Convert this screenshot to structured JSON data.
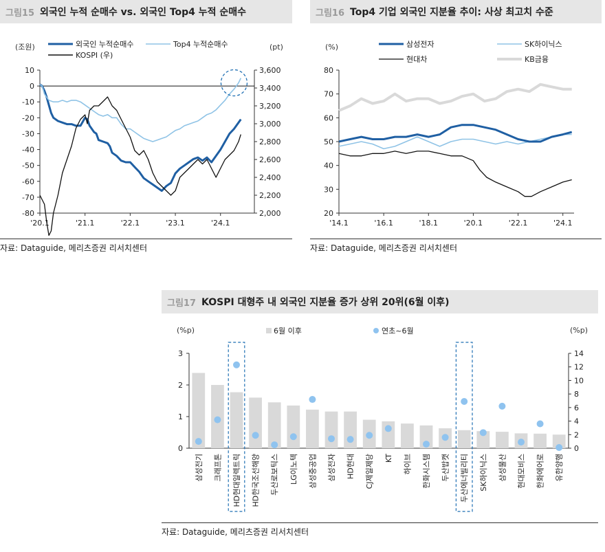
{
  "fig15": {
    "num": "그림15",
    "title": "외국인 누적 순매수 vs. 외국인 Top4 누적 순매수",
    "source": "자료: Dataguide, 메리츠증권 리서치센터",
    "chart_data": {
      "type": "line",
      "left_unit": "(조원)",
      "right_unit": "(pt)",
      "left_ticks": [
        10,
        0,
        -10,
        -20,
        -30,
        -40,
        -50,
        -60,
        -70,
        -80
      ],
      "right_ticks": [
        "3,600",
        "3,400",
        "3,200",
        "3,000",
        "2,800",
        "2,600",
        "2,400",
        "2,200",
        "2,000"
      ],
      "ylim_left": [
        -80,
        10
      ],
      "ylim_right": [
        2000,
        3600
      ],
      "x_ticks": [
        "'20.1",
        "'21.1",
        "'22.1",
        "'23.1",
        "'24.1"
      ],
      "xlim": [
        2020.0,
        2024.75
      ],
      "legend": [
        "외국인 누적순매수",
        "Top4 누적순매수",
        "KOSPI (우)"
      ],
      "colors": [
        "#1f5fa3",
        "#8fc3e6",
        "#111111"
      ],
      "series": [
        {
          "name": "외국인 누적순매수",
          "axis": "left",
          "x": [
            2020.0,
            2020.05,
            2020.1,
            2020.15,
            2020.2,
            2020.25,
            2020.3,
            2020.4,
            2020.5,
            2020.6,
            2020.7,
            2020.8,
            2020.9,
            2021.0,
            2021.05,
            2021.1,
            2021.2,
            2021.25,
            2021.3,
            2021.4,
            2021.5,
            2021.55,
            2021.6,
            2021.7,
            2021.8,
            2021.9,
            2022.0,
            2022.1,
            2022.2,
            2022.3,
            2022.4,
            2022.5,
            2022.6,
            2022.7,
            2022.8,
            2022.9,
            2023.0,
            2023.1,
            2023.2,
            2023.3,
            2023.4,
            2023.5,
            2023.6,
            2023.7,
            2023.8,
            2023.9,
            2024.0,
            2024.1,
            2024.2,
            2024.3,
            2024.4,
            2024.45
          ],
          "y": [
            1,
            0,
            -3,
            -7,
            -12,
            -17,
            -20,
            -22,
            -23,
            -24,
            -24,
            -25,
            -25,
            -20,
            -21,
            -25,
            -29,
            -30,
            -34,
            -35,
            -36,
            -38,
            -42,
            -44,
            -47,
            -48,
            -48,
            -51,
            -54,
            -58,
            -60,
            -62,
            -64,
            -66,
            -63,
            -61,
            -55,
            -52,
            -50,
            -48,
            -46,
            -45,
            -47,
            -45,
            -48,
            -44,
            -40,
            -35,
            -30,
            -27,
            -23,
            -21
          ]
        },
        {
          "name": "Top4 누적순매수",
          "axis": "left",
          "x": [
            2020.0,
            2020.05,
            2020.1,
            2020.2,
            2020.3,
            2020.4,
            2020.5,
            2020.6,
            2020.7,
            2020.8,
            2020.9,
            2021.0,
            2021.1,
            2021.2,
            2021.3,
            2021.4,
            2021.5,
            2021.6,
            2021.7,
            2021.8,
            2021.9,
            2022.0,
            2022.1,
            2022.2,
            2022.3,
            2022.4,
            2022.5,
            2022.6,
            2022.7,
            2022.8,
            2022.9,
            2023.0,
            2023.1,
            2023.2,
            2023.3,
            2023.4,
            2023.5,
            2023.6,
            2023.7,
            2023.8,
            2023.9,
            2024.0,
            2024.1,
            2024.2,
            2024.3,
            2024.4,
            2024.45
          ],
          "y": [
            1,
            0,
            -5,
            -9,
            -10,
            -10,
            -9,
            -10,
            -9,
            -9,
            -10,
            -12,
            -14,
            -16,
            -18,
            -19,
            -18,
            -20,
            -20,
            -24,
            -27,
            -27,
            -29,
            -31,
            -33,
            -34,
            -35,
            -34,
            -33,
            -32,
            -30,
            -28,
            -27,
            -25,
            -24,
            -23,
            -22,
            -20,
            -18,
            -17,
            -15,
            -12,
            -9,
            -5,
            -2,
            2,
            5
          ]
        },
        {
          "name": "KOSPI (우)",
          "axis": "right",
          "x": [
            2020.0,
            2020.05,
            2020.1,
            2020.15,
            2020.2,
            2020.25,
            2020.3,
            2020.4,
            2020.5,
            2020.6,
            2020.7,
            2020.8,
            2020.9,
            2021.0,
            2021.05,
            2021.1,
            2021.2,
            2021.3,
            2021.4,
            2021.5,
            2021.55,
            2021.6,
            2021.7,
            2021.8,
            2021.9,
            2022.0,
            2022.1,
            2022.2,
            2022.3,
            2022.4,
            2022.5,
            2022.6,
            2022.7,
            2022.8,
            2022.9,
            2023.0,
            2023.1,
            2023.2,
            2023.3,
            2023.4,
            2023.5,
            2023.6,
            2023.7,
            2023.8,
            2023.9,
            2024.0,
            2024.1,
            2024.2,
            2024.3,
            2024.4,
            2024.45
          ],
          "y": [
            2200,
            2150,
            2100,
            1900,
            1750,
            1800,
            2000,
            2200,
            2450,
            2600,
            2750,
            2950,
            3050,
            3100,
            3000,
            3150,
            3200,
            3200,
            3250,
            3300,
            3250,
            3200,
            3150,
            3050,
            2950,
            2850,
            2700,
            2650,
            2700,
            2600,
            2450,
            2350,
            2300,
            2250,
            2200,
            2250,
            2400,
            2450,
            2500,
            2550,
            2600,
            2550,
            2600,
            2500,
            2400,
            2500,
            2600,
            2650,
            2700,
            2800,
            2880
          ]
        }
      ]
    }
  },
  "fig16": {
    "num": "그림16",
    "title": "Top4 기업 외국인 지분율 추이: 사상 최고치 수준",
    "source": "자료: Dataguide, 메리츠증권 리서치센터",
    "chart_data": {
      "type": "line",
      "y_unit": "(%)",
      "y_ticks": [
        80,
        70,
        60,
        50,
        40,
        30,
        20
      ],
      "ylim": [
        20,
        80
      ],
      "x_ticks": [
        "'14.1",
        "'16.1",
        "'18.1",
        "'20.1",
        "'22.1",
        "'24.1"
      ],
      "xlim": [
        2014.0,
        2024.5
      ],
      "legend": [
        "삼성전자",
        "SK하이닉스",
        "현대차",
        "KB금융"
      ],
      "colors": [
        "#1f5fa3",
        "#8fc3e6",
        "#111111",
        "#d9d9d9"
      ],
      "series": [
        {
          "name": "삼성전자",
          "x": [
            2014.0,
            2014.5,
            2015.0,
            2015.5,
            2016.0,
            2016.5,
            2017.0,
            2017.5,
            2018.0,
            2018.5,
            2019.0,
            2019.5,
            2020.0,
            2020.5,
            2021.0,
            2021.5,
            2022.0,
            2022.5,
            2023.0,
            2023.5,
            2024.0,
            2024.4
          ],
          "y": [
            50,
            51,
            52,
            51,
            51,
            52,
            52,
            53,
            52,
            53,
            56,
            57,
            57,
            56,
            55,
            53,
            51,
            50,
            50,
            52,
            53,
            54
          ]
        },
        {
          "name": "SK하이닉스",
          "x": [
            2014.0,
            2014.5,
            2015.0,
            2015.5,
            2016.0,
            2016.5,
            2017.0,
            2017.5,
            2018.0,
            2018.5,
            2019.0,
            2019.5,
            2020.0,
            2020.5,
            2021.0,
            2021.5,
            2022.0,
            2022.5,
            2023.0,
            2023.5,
            2024.0,
            2024.4
          ],
          "y": [
            48,
            49,
            50,
            49,
            47,
            48,
            50,
            52,
            50,
            48,
            50,
            51,
            51,
            50,
            49,
            50,
            49,
            50,
            51,
            52,
            53,
            53
          ]
        },
        {
          "name": "현대차",
          "x": [
            2014.0,
            2014.5,
            2015.0,
            2015.5,
            2016.0,
            2016.5,
            2017.0,
            2017.5,
            2018.0,
            2018.5,
            2019.0,
            2019.5,
            2020.0,
            2020.3,
            2020.6,
            2021.0,
            2021.5,
            2022.0,
            2022.3,
            2022.6,
            2023.0,
            2023.5,
            2024.0,
            2024.4
          ],
          "y": [
            45,
            44,
            44,
            45,
            45,
            46,
            45,
            46,
            46,
            45,
            44,
            44,
            42,
            38,
            35,
            33,
            31,
            29,
            27,
            27,
            29,
            31,
            33,
            34
          ]
        },
        {
          "name": "KB금융",
          "x": [
            2014.0,
            2014.5,
            2015.0,
            2015.5,
            2016.0,
            2016.5,
            2017.0,
            2017.5,
            2018.0,
            2018.5,
            2019.0,
            2019.5,
            2020.0,
            2020.5,
            2021.0,
            2021.5,
            2022.0,
            2022.5,
            2023.0,
            2023.5,
            2024.0,
            2024.4
          ],
          "y": [
            63,
            65,
            68,
            66,
            67,
            70,
            67,
            68,
            68,
            66,
            67,
            69,
            70,
            67,
            68,
            71,
            72,
            71,
            74,
            73,
            72,
            72
          ]
        }
      ]
    }
  },
  "fig17": {
    "num": "그림17",
    "title": "KOSPI 대형주 내 외국인 지분율 증가 상위 20위(6월 이후)",
    "source": "자료: Dataguide, 메리츠증권 리서치센터",
    "chart_data": {
      "type": "bar",
      "left_unit": "(%p)",
      "right_unit": "(%p)",
      "left_ticks": [
        3,
        2,
        1,
        0
      ],
      "right_ticks": [
        14,
        12,
        10,
        8,
        6,
        4,
        2,
        0
      ],
      "ylim_left": [
        0,
        3
      ],
      "ylim_right": [
        0,
        14
      ],
      "legend": [
        "6월 이후",
        "연초~6월"
      ],
      "colors": [
        "#d9d9d9",
        "#8fc3ef"
      ],
      "categories": [
        "삼성전기",
        "크래프톤",
        "HD현대일렉트릭",
        "HD한국조선해양",
        "두산로보틱스",
        "LG이노텍",
        "삼성중공업",
        "삼성전자",
        "HD현대",
        "CJ제일제당",
        "KT",
        "하이브",
        "한화시스템",
        "두산밥캣",
        "두산에너빌리티",
        "SK하이닉스",
        "삼성물산",
        "현대모비스",
        "한화에어로",
        "유한양행"
      ],
      "bars": [
        2.38,
        2.0,
        1.77,
        1.6,
        1.45,
        1.35,
        1.22,
        1.16,
        1.16,
        0.9,
        0.85,
        0.78,
        0.72,
        0.63,
        0.57,
        0.54,
        0.52,
        0.47,
        0.46,
        0.43
      ],
      "dots": [
        1.0,
        4.2,
        12.3,
        1.9,
        0.5,
        1.7,
        7.2,
        1.4,
        1.3,
        1.9,
        2.9,
        null,
        0.6,
        1.6,
        6.9,
        2.3,
        6.2,
        0.9,
        3.6,
        0.1
      ],
      "highlight": [
        "HD현대일렉트릭",
        "두산에너빌리티"
      ]
    }
  }
}
